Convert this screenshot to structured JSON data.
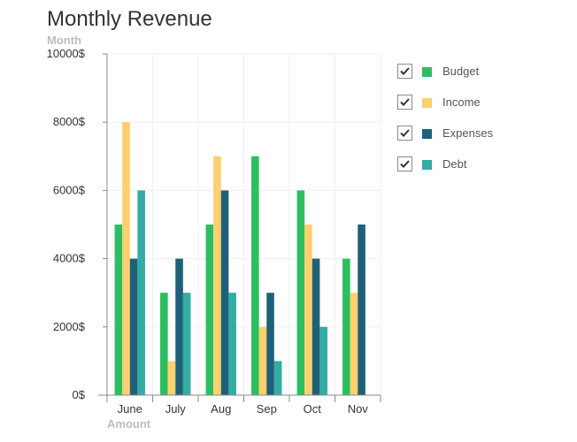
{
  "chart_data": {
    "type": "bar",
    "title": "Monthly Revenue",
    "xlabel": "Amount",
    "ylabel": "Month",
    "categories": [
      "June",
      "July",
      "Aug",
      "Sep",
      "Oct",
      "Nov"
    ],
    "ylim": [
      0,
      10000
    ],
    "yticks": [
      0,
      2000,
      4000,
      6000,
      8000,
      10000
    ],
    "ytick_labels": [
      "0$",
      "2000$",
      "4000$",
      "6000$",
      "8000$",
      "10000$"
    ],
    "grid": true,
    "legend_position": "right",
    "series": [
      {
        "name": "Budget",
        "color": "#2dbe60",
        "values": [
          5000,
          3000,
          5000,
          7000,
          6000,
          4000
        ]
      },
      {
        "name": "Income",
        "color": "#fcd06e",
        "values": [
          8000,
          1000,
          7000,
          2000,
          5000,
          3000
        ]
      },
      {
        "name": "Expenses",
        "color": "#1f6079",
        "values": [
          4000,
          4000,
          6000,
          3000,
          4000,
          5000
        ]
      },
      {
        "name": "Debt",
        "color": "#33aca4",
        "values": [
          6000,
          3000,
          3000,
          1000,
          2000,
          0
        ]
      }
    ]
  },
  "legend_checked": [
    true,
    true,
    true,
    true
  ]
}
